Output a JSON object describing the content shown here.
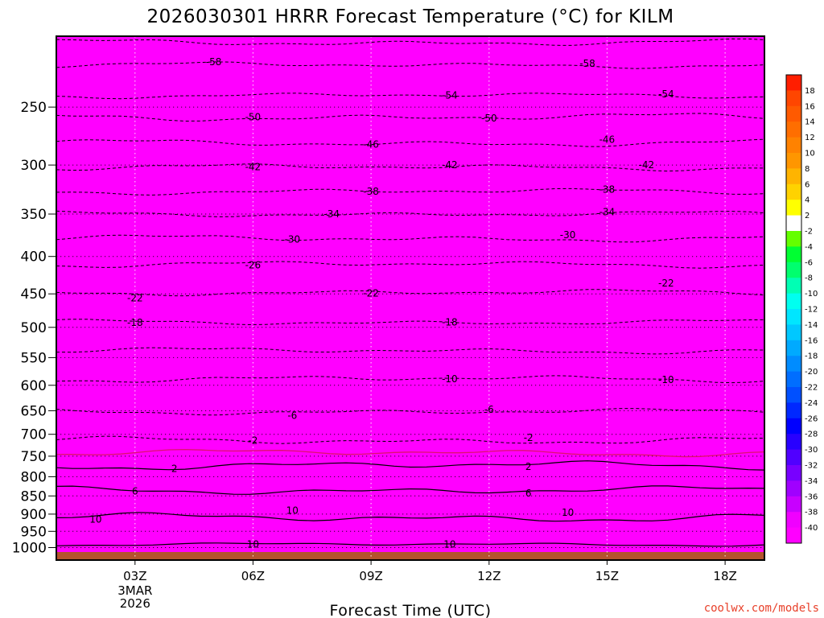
{
  "chart_data": {
    "type": "heatmap",
    "title": "2026030301 HRRR Forecast Temperature (°C) for KILM",
    "xlabel": "Forecast Time (UTC)",
    "ylabel": "",
    "x_ticks": [
      {
        "label": "03Z",
        "hour": 3,
        "sub": [
          "3MAR",
          "2026"
        ]
      },
      {
        "label": "06Z",
        "hour": 6
      },
      {
        "label": "09Z",
        "hour": 9
      },
      {
        "label": "12Z",
        "hour": 12
      },
      {
        "label": "15Z",
        "hour": 15
      },
      {
        "label": "18Z",
        "hour": 18
      }
    ],
    "x_range": [
      1,
      19
    ],
    "y_ticks": [
      250,
      300,
      350,
      400,
      450,
      500,
      550,
      600,
      650,
      700,
      750,
      800,
      850,
      900,
      950,
      1000
    ],
    "y_range_hpa": [
      200,
      1040
    ],
    "y_scale": "log-pressure",
    "isotherms": [
      {
        "t": 10,
        "p": 990,
        "pd": 5
      },
      {
        "t": 10,
        "p": 910,
        "pd": 12
      },
      {
        "t": 6,
        "p": 835,
        "pd": 10
      },
      {
        "t": 2,
        "p": 772,
        "pd": 10
      },
      {
        "t": 0,
        "p": 742,
        "pd": 8,
        "freezing": true
      },
      {
        "t": -2,
        "p": 714,
        "pd": 8
      },
      {
        "t": -6,
        "p": 652,
        "pd": 6
      },
      {
        "t": -10,
        "p": 588,
        "pd": 6
      },
      {
        "t": -14,
        "p": 538,
        "pd": 5
      },
      {
        "t": -18,
        "p": 492,
        "pd": 4
      },
      {
        "t": -22,
        "p": 448,
        "pd": 4
      },
      {
        "t": -26,
        "p": 410,
        "pd": 4
      },
      {
        "t": -30,
        "p": 378,
        "pd": 4
      },
      {
        "t": -34,
        "p": 350,
        "pd": 3
      },
      {
        "t": -38,
        "p": 326,
        "pd": 3
      },
      {
        "t": -42,
        "p": 302,
        "pd": 3
      },
      {
        "t": -46,
        "p": 280,
        "pd": 3
      },
      {
        "t": -50,
        "p": 258,
        "pd": 3
      },
      {
        "t": -54,
        "p": 241,
        "pd": 2
      },
      {
        "t": -58,
        "p": 219,
        "pd": 2
      },
      {
        "t": -62,
        "p": 204,
        "pd": 2
      }
    ],
    "contour_labels": [
      {
        "text": "-58",
        "hour": 5,
        "p": 217
      },
      {
        "text": "-58",
        "hour": 14.5,
        "p": 218
      },
      {
        "text": "-54",
        "hour": 11,
        "p": 241
      },
      {
        "text": "-54",
        "hour": 16.5,
        "p": 240
      },
      {
        "text": "-50",
        "hour": 6,
        "p": 258
      },
      {
        "text": "-50",
        "hour": 12,
        "p": 259
      },
      {
        "text": "-46",
        "hour": 9,
        "p": 281
      },
      {
        "text": "-46",
        "hour": 15,
        "p": 277
      },
      {
        "text": "-42",
        "hour": 6,
        "p": 302
      },
      {
        "text": "-42",
        "hour": 11,
        "p": 300
      },
      {
        "text": "-42",
        "hour": 16,
        "p": 300
      },
      {
        "text": "-38",
        "hour": 9,
        "p": 326
      },
      {
        "text": "-38",
        "hour": 15,
        "p": 324
      },
      {
        "text": "-34",
        "hour": 8,
        "p": 350
      },
      {
        "text": "-34",
        "hour": 15,
        "p": 348
      },
      {
        "text": "-30",
        "hour": 7,
        "p": 379
      },
      {
        "text": "-30",
        "hour": 14,
        "p": 374
      },
      {
        "text": "-26",
        "hour": 6,
        "p": 411
      },
      {
        "text": "-22",
        "hour": 3,
        "p": 456
      },
      {
        "text": "-22",
        "hour": 9,
        "p": 449
      },
      {
        "text": "-22",
        "hour": 16.5,
        "p": 435
      },
      {
        "text": "-18",
        "hour": 3,
        "p": 493
      },
      {
        "text": "-18",
        "hour": 11,
        "p": 492
      },
      {
        "text": "-10",
        "hour": 11,
        "p": 588
      },
      {
        "text": "-10",
        "hour": 16.5,
        "p": 590
      },
      {
        "text": "-6",
        "hour": 7,
        "p": 660
      },
      {
        "text": "-6",
        "hour": 12,
        "p": 648
      },
      {
        "text": "-2",
        "hour": 6,
        "p": 714
      },
      {
        "text": "-2",
        "hour": 13,
        "p": 708
      },
      {
        "text": "2",
        "hour": 4,
        "p": 780
      },
      {
        "text": "2",
        "hour": 13,
        "p": 775
      },
      {
        "text": "6",
        "hour": 3,
        "p": 838
      },
      {
        "text": "6",
        "hour": 13,
        "p": 843
      },
      {
        "text": "10",
        "hour": 2,
        "p": 915
      },
      {
        "text": "10",
        "hour": 7,
        "p": 890
      },
      {
        "text": "10",
        "hour": 14,
        "p": 896
      },
      {
        "text": "10",
        "hour": 6,
        "p": 990
      },
      {
        "text": "10",
        "hour": 11,
        "p": 990
      }
    ],
    "colorbar": {
      "labels": [
        "18",
        "16",
        "14",
        "12",
        "10",
        "8",
        "6",
        "4",
        "2",
        "-2",
        "-4",
        "-6",
        "-8",
        "-10",
        "-12",
        "-14",
        "-16",
        "-18",
        "-20",
        "-22",
        "-24",
        "-26",
        "-28",
        "-30",
        "-32",
        "-34",
        "-36",
        "-38",
        "-40"
      ],
      "colors": [
        "#ff1e00",
        "#ff4600",
        "#ff5a00",
        "#ff6e00",
        "#ff8200",
        "#ff9600",
        "#ffb400",
        "#ffd200",
        "#ffff00",
        "#ffffff",
        "#64ff00",
        "#00ff32",
        "#00ff6e",
        "#00ffb4",
        "#00fff0",
        "#00e6ff",
        "#00c8ff",
        "#00aaff",
        "#008cff",
        "#006eff",
        "#0050ff",
        "#0028ff",
        "#0000ff",
        "#2800ff",
        "#5000ff",
        "#7800ff",
        "#a000ff",
        "#c800ff",
        "#f000ff",
        "#ff00ff"
      ]
    }
  },
  "credit": "coolwx.com/models"
}
